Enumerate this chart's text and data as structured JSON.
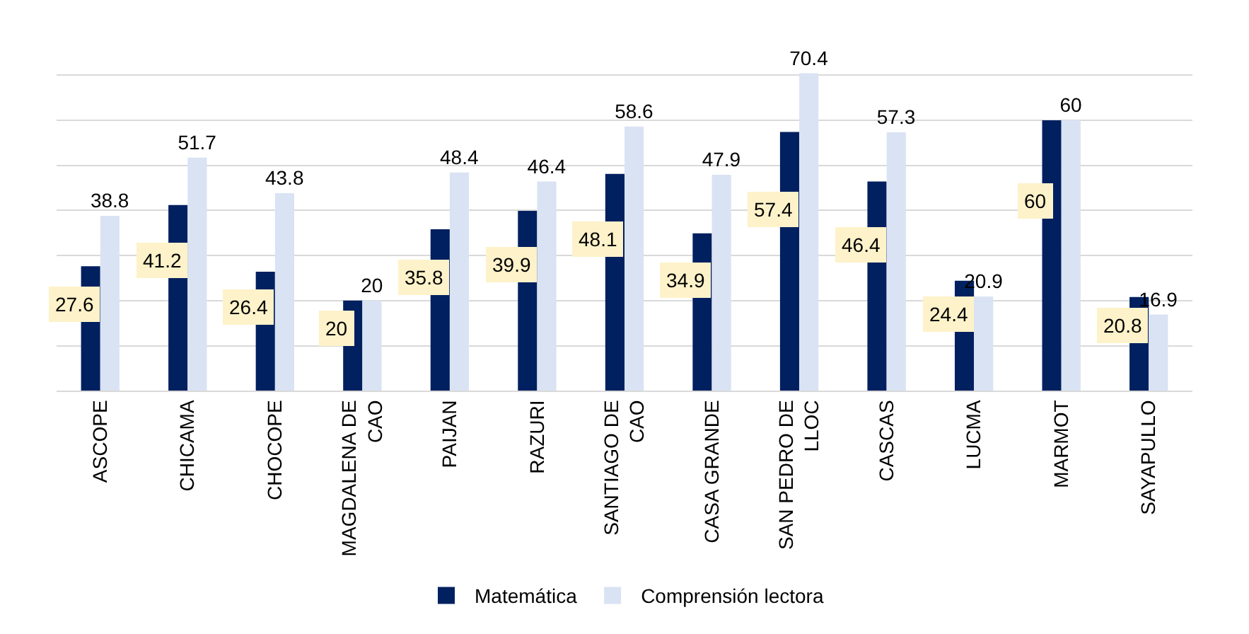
{
  "chart_data": {
    "type": "bar",
    "categories": [
      "ASCOPE",
      "CHICAMA",
      "CHOCOPE",
      "MAGDALENA DE CAO",
      "PAIJAN",
      "RAZURI",
      "SANTIAGO DE CAO",
      "CASA GRANDE",
      "SAN PEDRO DE LLOC",
      "CASCAS",
      "LUCMA",
      "MARMOT",
      "SAYAPULLO"
    ],
    "series": [
      {
        "name": "Matemática",
        "color": "#002060",
        "values": [
          27.6,
          41.2,
          26.4,
          20,
          35.8,
          39.9,
          48.1,
          34.9,
          57.4,
          46.4,
          24.4,
          60,
          20.8
        ]
      },
      {
        "name": "Comprensión lectora",
        "color": "#dae3f3",
        "values": [
          38.8,
          51.7,
          43.8,
          20,
          48.4,
          46.4,
          58.6,
          47.9,
          70.4,
          57.3,
          20.9,
          60,
          16.9
        ]
      }
    ],
    "tick_labels": "x",
    "grid": "y",
    "legend": "bottom",
    "data_labels": true
  }
}
